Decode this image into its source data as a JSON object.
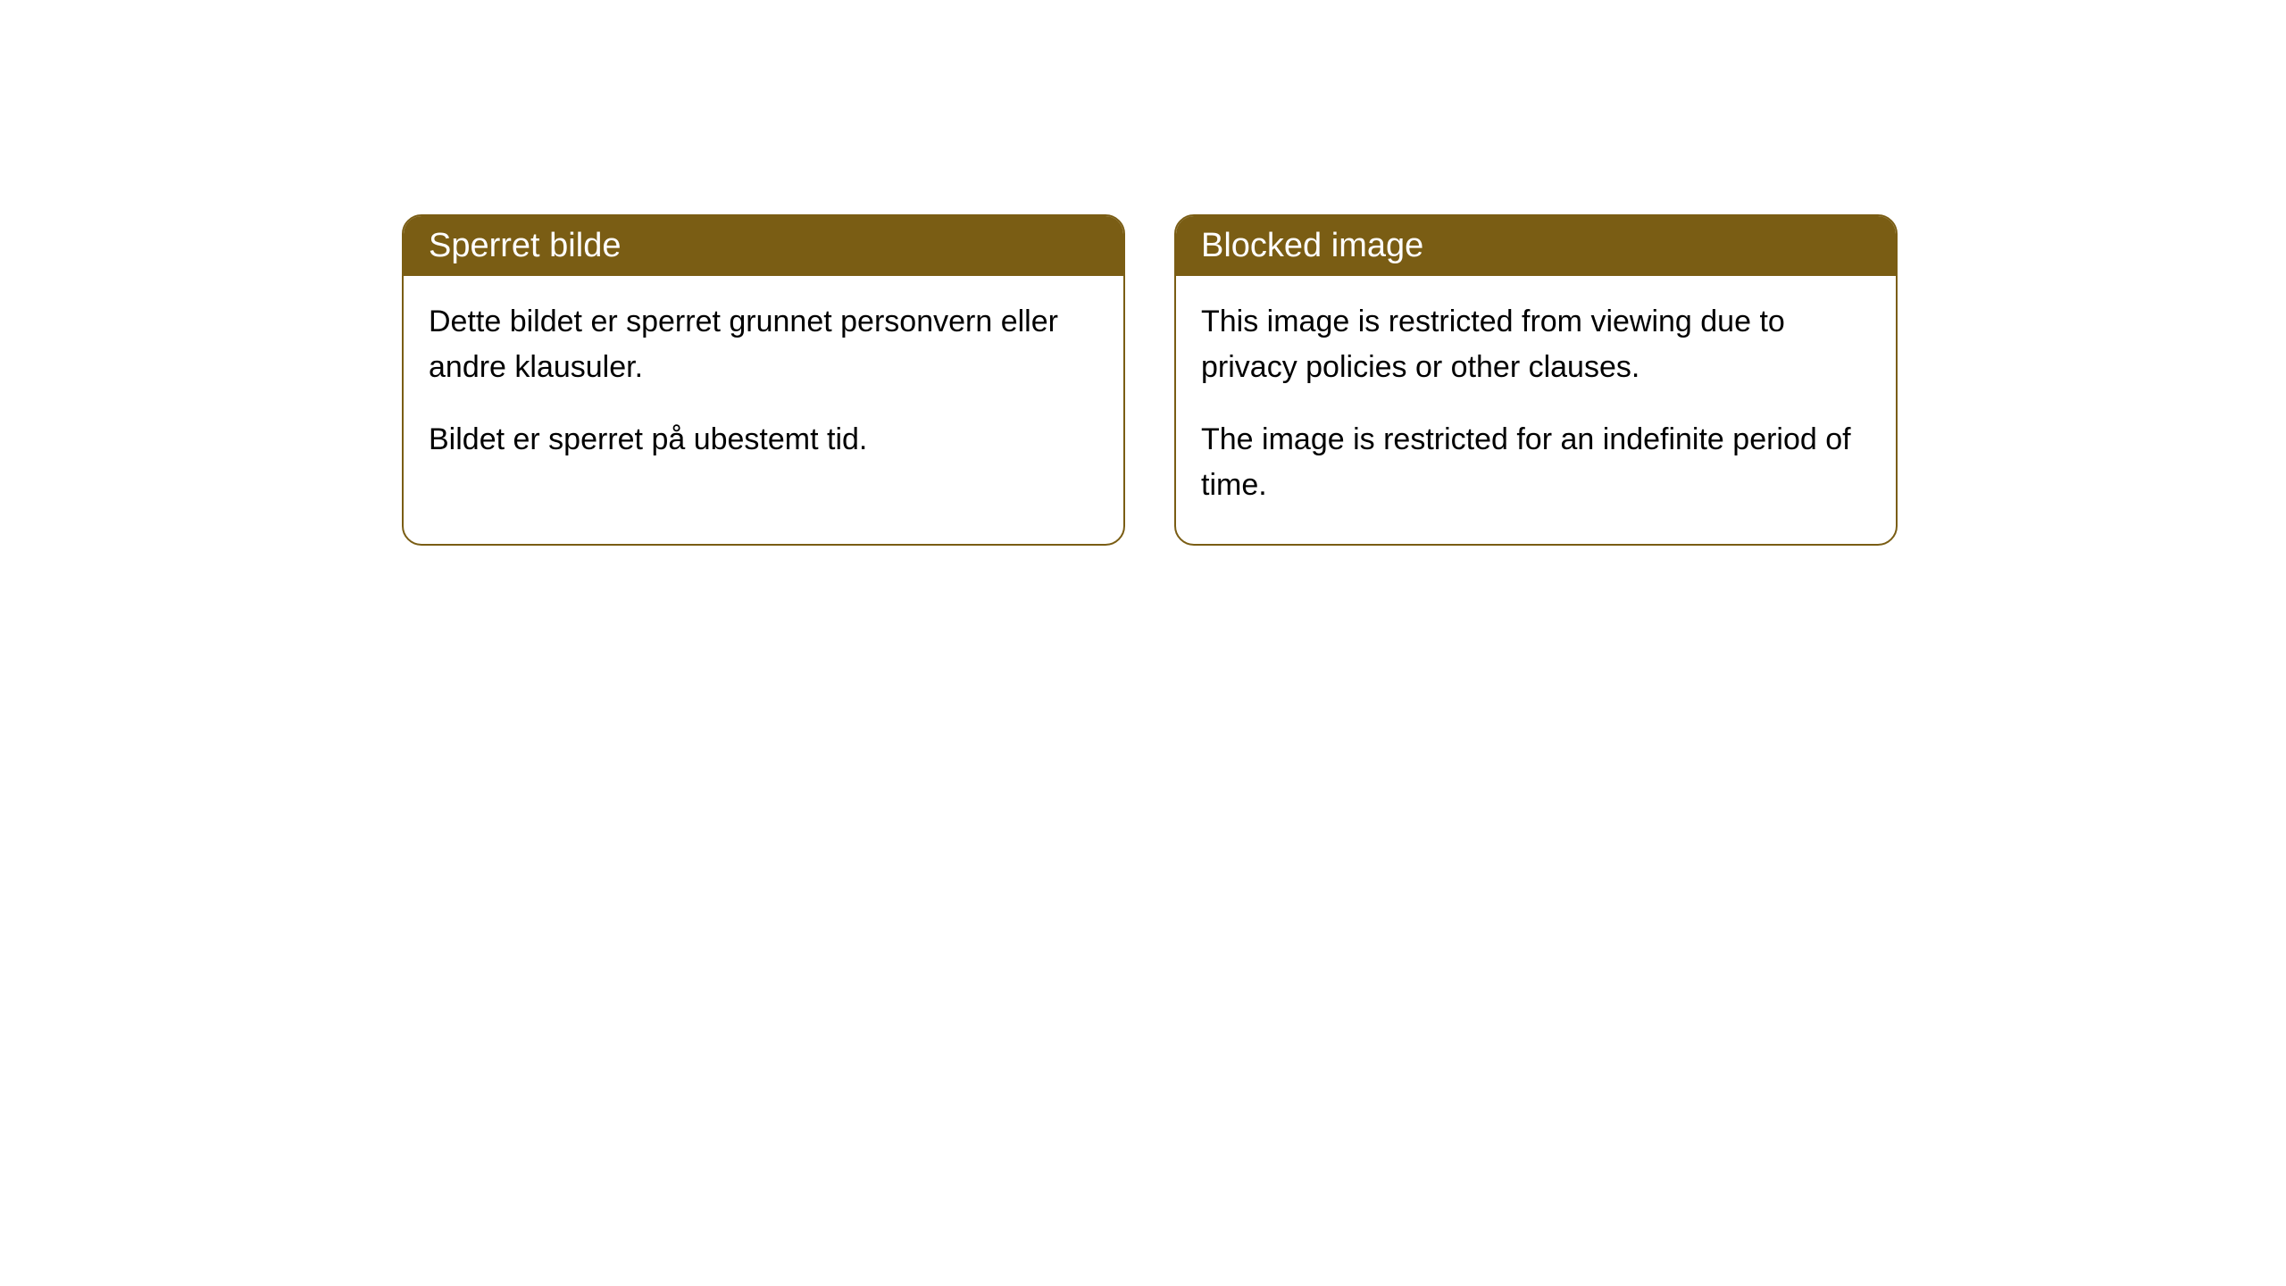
{
  "cards": [
    {
      "title": "Sperret bilde",
      "paragraph1": "Dette bildet er sperret grunnet personvern eller andre klausuler.",
      "paragraph2": "Bildet er sperret på ubestemt tid."
    },
    {
      "title": "Blocked image",
      "paragraph1": "This image is restricted from viewing due to privacy policies or other clauses.",
      "paragraph2": "The image is restricted for an indefinite period of time."
    }
  ],
  "styling": {
    "header_background_color": "#7a5d14",
    "header_text_color": "#ffffff",
    "border_color": "#7a5d14",
    "body_background_color": "#ffffff",
    "body_text_color": "#000000",
    "border_radius": 22,
    "header_fontsize": 38,
    "body_fontsize": 34
  }
}
